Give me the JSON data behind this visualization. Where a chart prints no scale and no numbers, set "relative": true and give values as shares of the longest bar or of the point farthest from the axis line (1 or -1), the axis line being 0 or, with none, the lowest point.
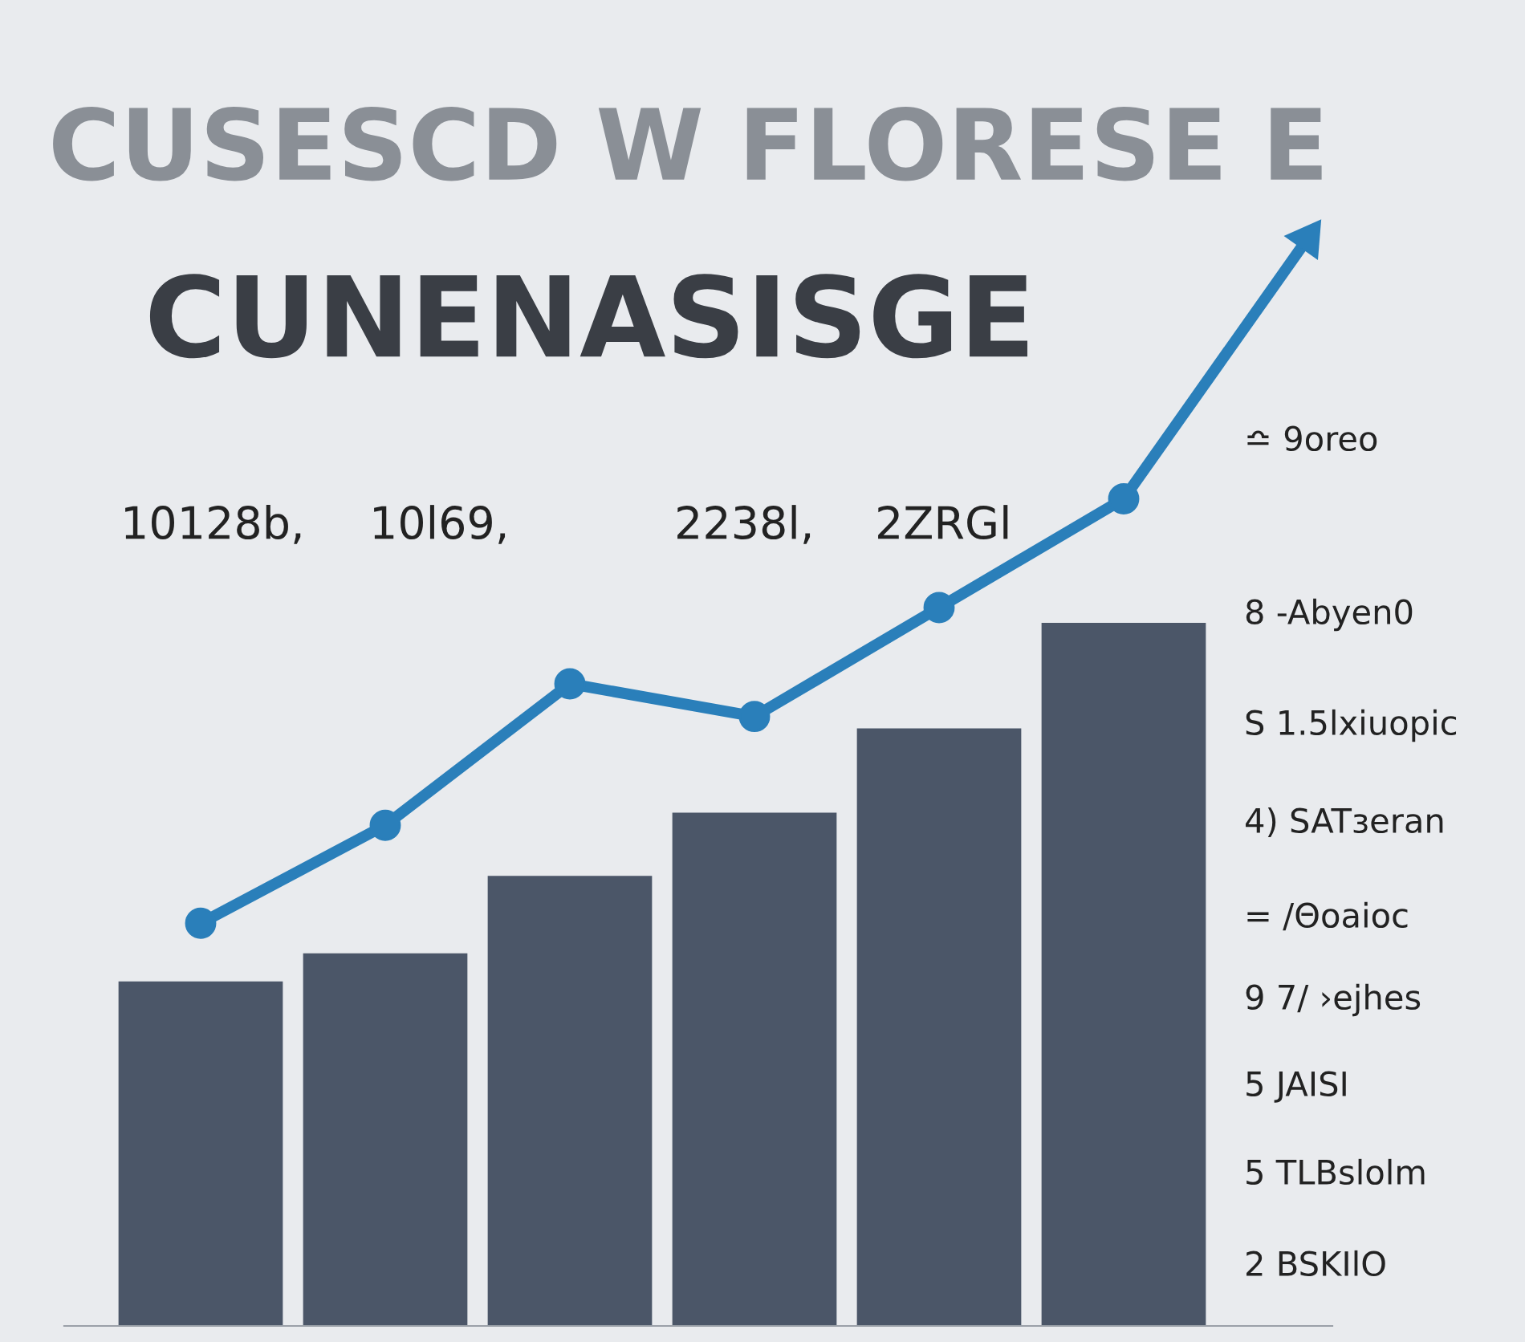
{
  "chart_data": [
    {
      "type": "bar",
      "title": "CUSESCD W FLORESE E",
      "subtitle": "CUNENASISGE",
      "relative": true,
      "categories": [
        null,
        null,
        null,
        null,
        null,
        null
      ],
      "series": [
        {
          "color": "#4b5668",
          "values": [
            0.49,
            0.53,
            0.64,
            0.73,
            0.85,
            1.0
          ]
        }
      ],
      "annotations": [
        "10128b,",
        "10l69,",
        "2238l,",
        "2ZRGl",
        "≏ 9oreo",
        "8 -Abyen0",
        "S 1.5lxiuopic",
        "4) SATзeran",
        "= /Θoaioc",
        "9 7/ ›ejhes",
        "5 JAISI",
        "5 TLBslolm",
        "2 BSKIlO"
      ]
    },
    {
      "type": "line",
      "relative": true,
      "marker": "circle",
      "categories": [
        null,
        null,
        null,
        null,
        null,
        null,
        null
      ],
      "series": [
        {
          "color": "#2a7fba",
          "values": [
            0.37,
            0.46,
            0.59,
            0.56,
            0.66,
            0.76,
            1.0
          ]
        }
      ]
    }
  ]
}
